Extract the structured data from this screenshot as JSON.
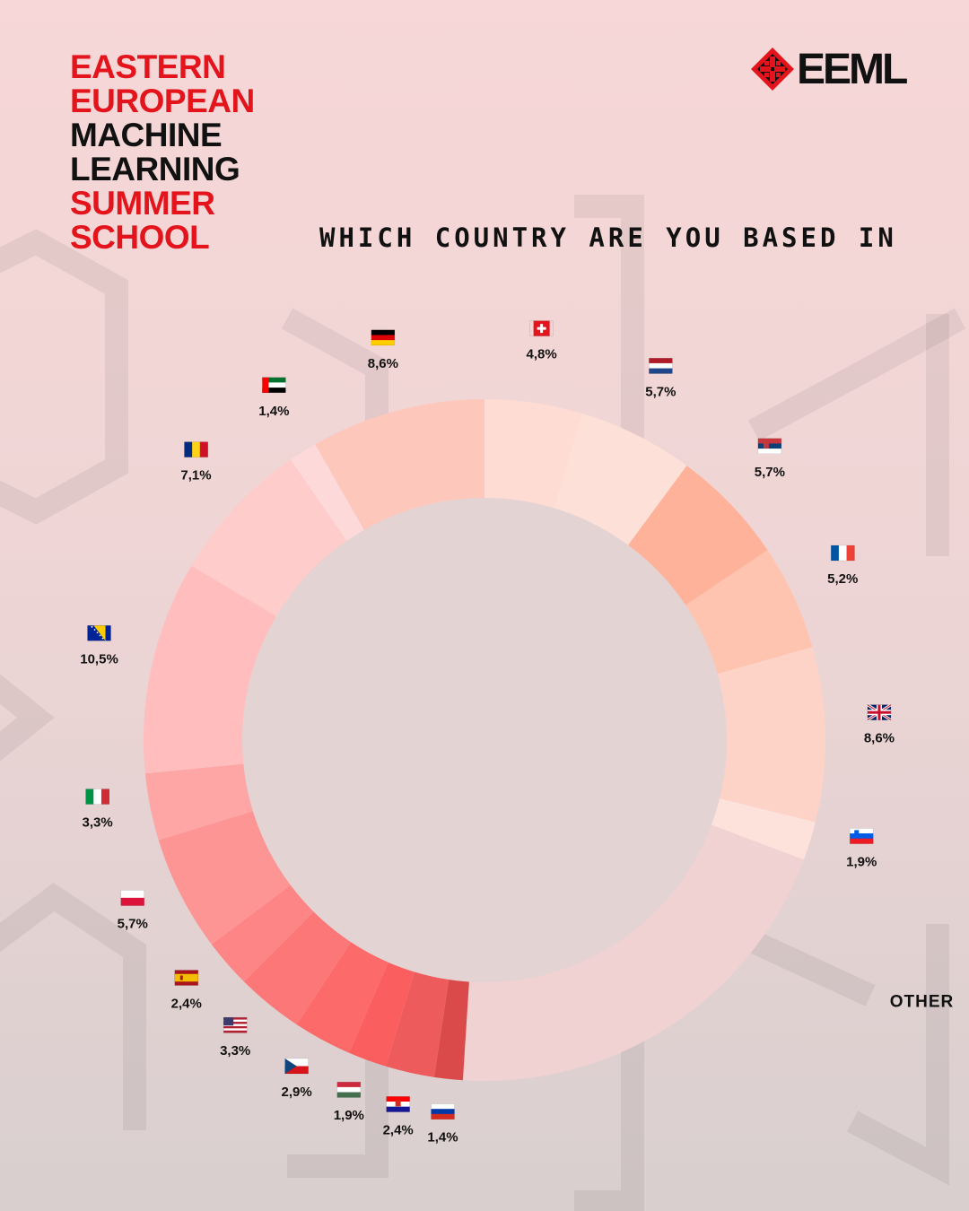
{
  "header": {
    "school_lines": [
      {
        "text": "EASTERN",
        "color": "red"
      },
      {
        "text": "EUROPEAN",
        "color": "red"
      },
      {
        "text": "MACHINE",
        "color": "black"
      },
      {
        "text": "LEARNING",
        "color": "black"
      },
      {
        "text": "SUMMER",
        "color": "red"
      },
      {
        "text": "SCHOOL",
        "color": "red"
      }
    ],
    "brand": "EEML",
    "brand_icon": "embroidery-star-icon"
  },
  "colors": {
    "brand_red": "#e3141b",
    "text": "#111111"
  },
  "chart_data": {
    "type": "pie",
    "variant": "donut",
    "title": "WHICH COUNTRY ARE YOU BASED IN",
    "slices": [
      {
        "country": "Switzerland",
        "flag": "flag-switzerland-icon",
        "label": "4,8%",
        "value": 4.8,
        "color": "#fedcd4"
      },
      {
        "country": "Netherlands",
        "flag": "flag-netherlands-icon",
        "label": "5,7%",
        "value": 5.7,
        "color": "#fde0d8"
      },
      {
        "country": "Serbia",
        "flag": "flag-serbia-icon",
        "label": "5,7%",
        "value": 5.7,
        "color": "#feb29a"
      },
      {
        "country": "France",
        "flag": "flag-france-icon",
        "label": "5,2%",
        "value": 5.2,
        "color": "#fec4b0"
      },
      {
        "country": "United Kingdom",
        "flag": "flag-uk-icon",
        "label": "8,6%",
        "value": 8.6,
        "color": "#fed3c7"
      },
      {
        "country": "Slovenia",
        "flag": "flag-slovenia-icon",
        "label": "1,9%",
        "value": 1.9,
        "color": "#fde2dc"
      },
      {
        "country": "Other",
        "flag": "",
        "label": "OTHER",
        "value": 21.1,
        "color": "#f1d2d3"
      },
      {
        "country": "Russia",
        "flag": "flag-russia-icon",
        "label": "1,4%",
        "value": 1.4,
        "color": "#db4a4a"
      },
      {
        "country": "Croatia",
        "flag": "flag-croatia-icon",
        "label": "2,4%",
        "value": 2.4,
        "color": "#ee5b5c"
      },
      {
        "country": "Hungary",
        "flag": "flag-hungary-icon",
        "label": "1,9%",
        "value": 1.9,
        "color": "#fb5e5e"
      },
      {
        "country": "Czech Republic",
        "flag": "flag-czechia-icon",
        "label": "2,9%",
        "value": 2.9,
        "color": "#fc6a6a"
      },
      {
        "country": "United States",
        "flag": "flag-usa-icon",
        "label": "3,3%",
        "value": 3.3,
        "color": "#fc7777"
      },
      {
        "country": "Spain",
        "flag": "flag-spain-icon",
        "label": "2,4%",
        "value": 2.4,
        "color": "#fd8585"
      },
      {
        "country": "Poland",
        "flag": "flag-poland-icon",
        "label": "5,7%",
        "value": 5.7,
        "color": "#fd9595"
      },
      {
        "country": "Italy",
        "flag": "flag-italy-icon",
        "label": "3,3%",
        "value": 3.3,
        "color": "#fea6a6"
      },
      {
        "country": "Bosnia and Herzegovina",
        "flag": "flag-bosnia-icon",
        "label": "10,5%",
        "value": 10.5,
        "color": "#ffbdbd"
      },
      {
        "country": "Romania",
        "flag": "flag-romania-icon",
        "label": "7,1%",
        "value": 7.1,
        "color": "#ffcccc"
      },
      {
        "country": "United Arab Emirates",
        "flag": "flag-uae-icon",
        "label": "1,4%",
        "value": 1.4,
        "color": "#fdd9d9"
      },
      {
        "country": "Germany",
        "flag": "flag-germany-icon",
        "label": "8,6%",
        "value": 8.6,
        "color": "#fec7bb"
      }
    ]
  }
}
